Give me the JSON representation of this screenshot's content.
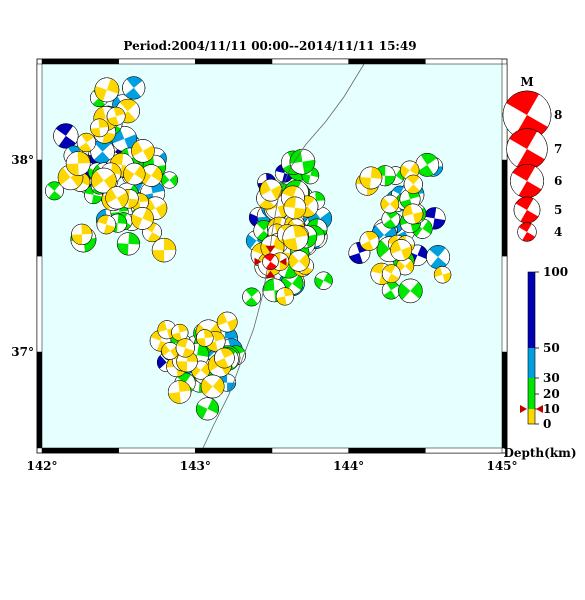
{
  "title": "Period:2004/11/11 00:00--2014/11/11 15:49",
  "map": {
    "lon_range": [
      142,
      145
    ],
    "lat_range": [
      36.5,
      38.5
    ],
    "lon_ticks": [
      {
        "value": 142,
        "label": "142°"
      },
      {
        "value": 143,
        "label": "143°"
      },
      {
        "value": 144,
        "label": "144°"
      },
      {
        "value": 145,
        "label": "145°"
      }
    ],
    "lat_ticks": [
      {
        "value": 38,
        "label": "38°"
      },
      {
        "value": 37,
        "label": "37°"
      }
    ],
    "ocean_color": "#e6ffff",
    "trench_color": "#666666",
    "trench_line": [
      [
        143.05,
        36.5
      ],
      [
        143.12,
        36.62
      ],
      [
        143.22,
        36.78
      ],
      [
        143.3,
        36.95
      ],
      [
        143.38,
        37.12
      ],
      [
        143.44,
        37.3
      ],
      [
        143.48,
        37.48
      ],
      [
        143.5,
        37.62
      ],
      [
        143.54,
        37.8
      ],
      [
        143.62,
        37.96
      ],
      [
        143.72,
        38.08
      ],
      [
        143.85,
        38.2
      ],
      [
        143.97,
        38.33
      ],
      [
        144.1,
        38.5
      ]
    ],
    "epicenter": {
      "lon": 143.49,
      "lat": 37.47,
      "color": "#ff0000",
      "marker_color": "#c00000"
    }
  },
  "legend": {
    "title": "M",
    "items": [
      {
        "label": "8",
        "mag": 8
      },
      {
        "label": "7",
        "mag": 7
      },
      {
        "label": "6",
        "mag": 6
      },
      {
        "label": "5",
        "mag": 5
      },
      {
        "label": "4",
        "mag": 4
      }
    ],
    "fill_color": "#ff0000"
  },
  "colorbar": {
    "label": "Depth(km)",
    "ticks": [
      {
        "value": 100,
        "label": "100"
      },
      {
        "value": 50,
        "label": "50"
      },
      {
        "value": 30,
        "label": "30"
      },
      {
        "value": 20,
        "label": "20"
      },
      {
        "value": 10,
        "label": "10"
      },
      {
        "value": 0,
        "label": "0"
      }
    ],
    "bands": [
      {
        "from": 0,
        "to": 10,
        "color": "#ffd700"
      },
      {
        "from": 10,
        "to": 30,
        "color": "#00e600"
      },
      {
        "from": 30,
        "to": 50,
        "color": "#00a0e0"
      },
      {
        "from": 50,
        "to": 100,
        "color": "#0000b4"
      }
    ],
    "marker_value": 10,
    "marker_color": "#c00000"
  },
  "chart_data": {
    "type": "scatter",
    "title": "Period:2004/11/11 00:00--2014/11/11 15:49",
    "xlim": [
      142,
      145
    ],
    "ylim": [
      36.5,
      38.5
    ],
    "xlabel": "",
    "ylabel": "",
    "legend_position": "right",
    "seed": 7,
    "clusters": [
      {
        "lon": 143.6,
        "lat": 37.65,
        "spread_lon": 0.28,
        "spread_lat": 0.42,
        "count": 95
      },
      {
        "lon": 143.0,
        "lat": 36.95,
        "spread_lon": 0.35,
        "spread_lat": 0.35,
        "count": 40
      },
      {
        "lon": 142.5,
        "lat": 37.9,
        "spread_lon": 0.5,
        "spread_lat": 0.55,
        "count": 75
      },
      {
        "lon": 144.3,
        "lat": 37.7,
        "spread_lon": 0.45,
        "spread_lat": 0.55,
        "count": 40
      }
    ]
  }
}
